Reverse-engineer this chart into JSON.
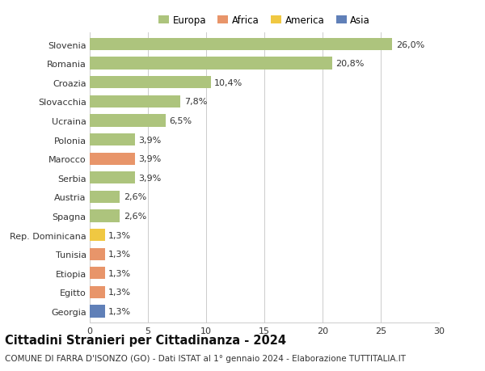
{
  "title": "Cittadini Stranieri per Cittadinanza - 2024",
  "subtitle": "COMUNE DI FARRA D'ISONZO (GO) - Dati ISTAT al 1° gennaio 2024 - Elaborazione TUTTITALIA.IT",
  "countries": [
    "Slovenia",
    "Romania",
    "Croazia",
    "Slovacchia",
    "Ucraina",
    "Polonia",
    "Marocco",
    "Serbia",
    "Austria",
    "Spagna",
    "Rep. Dominicana",
    "Tunisia",
    "Etiopia",
    "Egitto",
    "Georgia"
  ],
  "values": [
    26.0,
    20.8,
    10.4,
    7.8,
    6.5,
    3.9,
    3.9,
    3.9,
    2.6,
    2.6,
    1.3,
    1.3,
    1.3,
    1.3,
    1.3
  ],
  "labels": [
    "26,0%",
    "20,8%",
    "10,4%",
    "7,8%",
    "6,5%",
    "3,9%",
    "3,9%",
    "3,9%",
    "2,6%",
    "2,6%",
    "1,3%",
    "1,3%",
    "1,3%",
    "1,3%",
    "1,3%"
  ],
  "continents": [
    "Europa",
    "Europa",
    "Europa",
    "Europa",
    "Europa",
    "Europa",
    "Africa",
    "Europa",
    "Europa",
    "Europa",
    "America",
    "Africa",
    "Africa",
    "Africa",
    "Asia"
  ],
  "colors": {
    "Europa": "#adc47d",
    "Africa": "#e8956a",
    "America": "#f0c842",
    "Asia": "#6080b8"
  },
  "legend_items": [
    "Europa",
    "Africa",
    "America",
    "Asia"
  ],
  "xlim": [
    0,
    30
  ],
  "xticks": [
    0,
    5,
    10,
    15,
    20,
    25,
    30
  ],
  "background_color": "#ffffff",
  "grid_color": "#cccccc",
  "bar_height": 0.65,
  "title_fontsize": 10.5,
  "subtitle_fontsize": 7.5,
  "label_fontsize": 8,
  "tick_fontsize": 8,
  "legend_fontsize": 8.5
}
